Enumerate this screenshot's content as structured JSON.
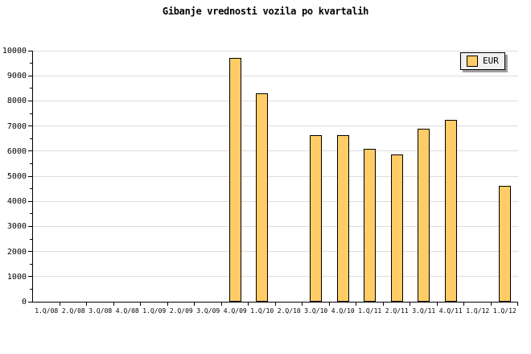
{
  "chart_data": {
    "type": "bar",
    "title": "Gibanje vrednosti vozila po kvartalih",
    "xlabel": "",
    "ylabel": "",
    "categories": [
      "1.Q/08",
      "2.Q/08",
      "3.Q/08",
      "4.Q/08",
      "1.Q/09",
      "2.Q/09",
      "3.Q/09",
      "4.Q/09",
      "1.Q/10",
      "2.Q/10",
      "3.Q/10",
      "4.Q/10",
      "1.Q/11",
      "2.Q/11",
      "3.Q/11",
      "4.Q/11",
      "1.Q/12",
      "1.Q/12"
    ],
    "series": [
      {
        "name": "EUR",
        "values": [
          null,
          null,
          null,
          null,
          null,
          null,
          null,
          9700,
          8300,
          null,
          6650,
          6650,
          6100,
          5850,
          6900,
          7250,
          null,
          4600
        ]
      }
    ],
    "ylim": [
      0,
      10000
    ],
    "ytick_interval": 1000,
    "yminor_tick_interval": 500,
    "grid": true,
    "legend_position": "top-right",
    "colors": {
      "background": "#FFFFFF",
      "text": "#000000",
      "axis": "#000000",
      "gridline": "#DDDDDD",
      "bar_fill": "#FFCC66",
      "bar_border": "#000000",
      "legend_bg": "#F0F0F0",
      "legend_border": "#000000",
      "legend_shadow": "#A0A0A0"
    }
  }
}
